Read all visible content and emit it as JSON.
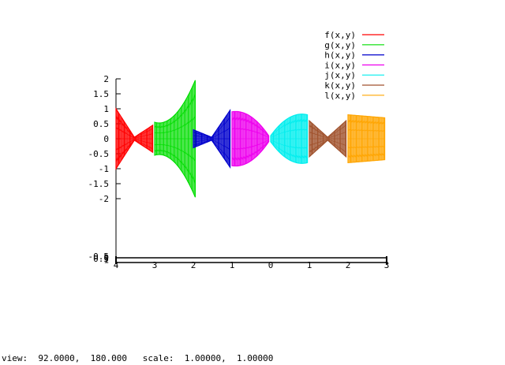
{
  "chart_data": {
    "type": "3d-surface-slices",
    "view_rotation": [
      92.0,
      180.0
    ],
    "z_axis": {
      "range": [
        -2,
        2
      ],
      "ticks": [
        "2",
        "1.5",
        "1",
        "0.5",
        "0",
        "-0.5",
        "-1",
        "-1.5",
        "-2"
      ]
    },
    "x_axis": {
      "range": [
        -4,
        3
      ],
      "ticks": [
        "4",
        "3",
        "2",
        "1",
        "0",
        "1",
        "2",
        "3"
      ]
    },
    "series": [
      {
        "name": "f(x,y)",
        "color": "#ff0000",
        "x_range": [
          -4.0,
          -3.05
        ],
        "amplitude": [
          1.0,
          0.05,
          0.45
        ],
        "profile": "bowtie"
      },
      {
        "name": "g(x,y)",
        "color": "#00dd00",
        "x_range": [
          -3.0,
          -1.95
        ],
        "amplitude": [
          0.55,
          0.8,
          1.95
        ],
        "profile": "rising"
      },
      {
        "name": "h(x,y)",
        "color": "#0000cc",
        "x_range": [
          -2.0,
          -1.05
        ],
        "amplitude": [
          0.3,
          0.05,
          0.95
        ],
        "profile": "bowtie"
      },
      {
        "name": "i(x,y)",
        "color": "#ee00ee",
        "x_range": [
          -1.0,
          -0.05
        ],
        "amplitude": [
          0.9,
          0.75,
          0.1
        ],
        "profile": "dome"
      },
      {
        "name": "j(x,y)",
        "color": "#00eeee",
        "x_range": [
          0.0,
          0.95
        ],
        "amplitude": [
          0.1,
          0.7,
          0.8
        ],
        "profile": "dome"
      },
      {
        "name": "k(x,y)",
        "color": "#a0522d",
        "x_range": [
          1.0,
          1.95
        ],
        "amplitude": [
          0.6,
          0.05,
          0.6
        ],
        "profile": "bowtie"
      },
      {
        "name": "l(x,y)",
        "color": "#ffa500",
        "x_range": [
          2.0,
          2.95
        ],
        "amplitude": [
          0.8,
          0.75,
          0.7
        ],
        "profile": "flat"
      }
    ],
    "base_labels": [
      "-0.5",
      "0",
      "0.5",
      "1"
    ]
  },
  "status_line": "view:  92.0000,  180.000   scale:  1.00000,  1.00000"
}
